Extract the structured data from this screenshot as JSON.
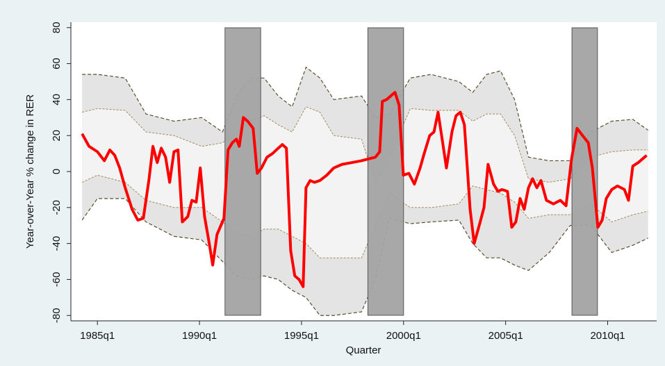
{
  "chart_data": {
    "type": "line",
    "x_label": "Quarter",
    "y_label": "Year-over-Year % change in RER",
    "xlim": [
      1983.7,
      2012.4
    ],
    "ylim": [
      -83,
      83
    ],
    "xticks": [
      {
        "value": 1985,
        "label": "1985q1"
      },
      {
        "value": 1990,
        "label": "1990q1"
      },
      {
        "value": 1995,
        "label": "1995q1"
      },
      {
        "value": 2000,
        "label": "2000q1"
      },
      {
        "value": 2005,
        "label": "2005q1"
      },
      {
        "value": 2010,
        "label": "2010q1"
      }
    ],
    "yticks": [
      -80,
      -60,
      -40,
      -20,
      0,
      20,
      40,
      60,
      80
    ],
    "grid": false,
    "shaded_periods": [
      [
        1991.25,
        1993.0
      ],
      [
        1998.25,
        2000.0
      ],
      [
        2008.25,
        2009.5
      ]
    ],
    "shade_color": "#a3a3a3",
    "band_x": [
      1984.25,
      1985.0,
      1986.36,
      1987.38,
      1988.75,
      1990.11,
      1991.13,
      1991.81,
      1992.49,
      1993.17,
      1993.86,
      1994.54,
      1995.22,
      1995.9,
      1996.58,
      1997.94,
      1998.62,
      1999.31,
      2000.33,
      2001.35,
      2002.71,
      2003.39,
      2004.07,
      2004.75,
      2005.44,
      2006.12,
      2007.14,
      2008.16,
      2009.18,
      2010.2,
      2011.23,
      2011.98
    ],
    "bands": [
      {
        "color": "#e4e4e4",
        "edge_color": "#5c4d2e",
        "upper": [
          54,
          54,
          52,
          32,
          28,
          30,
          22,
          42,
          52,
          52,
          42,
          36,
          58,
          52,
          40,
          42,
          30,
          32,
          52,
          54,
          50,
          44,
          54,
          56,
          40,
          8,
          6,
          6,
          22,
          28,
          29,
          23
        ],
        "lower": [
          -27,
          -15,
          -15,
          -28,
          -36,
          -38,
          -50,
          -58,
          -60,
          -58,
          -60,
          -66,
          -70,
          -80,
          -80,
          -78,
          -60,
          -26,
          -29,
          -28,
          -27,
          -40,
          -48,
          -48,
          -52,
          -55,
          -45,
          -30,
          -30,
          -45,
          -41,
          -37
        ]
      },
      {
        "color": "#f3f3f3",
        "edge_color": "#a08c5a",
        "upper": [
          33,
          35,
          34,
          22,
          20,
          14,
          16,
          22,
          28,
          31,
          26,
          22,
          36,
          33,
          20,
          18,
          -6,
          8,
          35,
          34,
          34,
          28,
          32,
          32,
          20,
          -4,
          -6,
          -4,
          8,
          11,
          12,
          12
        ],
        "lower": [
          -6,
          -2,
          -6,
          -16,
          -20,
          -20,
          -28,
          -34,
          -36,
          -32,
          -32,
          -36,
          -40,
          -48,
          -48,
          -48,
          -30,
          -12,
          -20,
          -20,
          -18,
          -8,
          -10,
          -12,
          -17,
          -26,
          -24,
          -24,
          -18,
          -28,
          -24,
          -22
        ]
      }
    ],
    "series": [
      {
        "color": "#ff0000",
        "x": [
          1984.25,
          1984.59,
          1985.0,
          1985.34,
          1985.61,
          1985.85,
          1986.09,
          1986.36,
          1986.7,
          1986.98,
          1987.25,
          1987.52,
          1987.72,
          1987.93,
          1988.13,
          1988.34,
          1988.54,
          1988.75,
          1988.95,
          1989.16,
          1989.43,
          1989.63,
          1989.84,
          1990.04,
          1990.25,
          1990.45,
          1990.65,
          1990.86,
          1991.2,
          1991.4,
          1991.61,
          1991.81,
          1991.95,
          1992.15,
          1992.36,
          1992.63,
          1992.83,
          1993.04,
          1993.31,
          1993.58,
          1993.86,
          1994.06,
          1994.26,
          1994.47,
          1994.67,
          1994.88,
          1995.08,
          1995.22,
          1995.42,
          1995.63,
          1995.9,
          1996.24,
          1996.58,
          1996.99,
          1997.47,
          1997.94,
          1998.28,
          1998.62,
          1998.83,
          1998.96,
          1999.17,
          1999.37,
          1999.58,
          1999.78,
          1999.99,
          2000.26,
          2000.53,
          2000.81,
          2001.01,
          2001.28,
          2001.49,
          2001.69,
          2001.89,
          2002.1,
          2002.37,
          2002.57,
          2002.78,
          2002.98,
          2003.26,
          2003.46,
          2003.73,
          2003.94,
          2004.14,
          2004.41,
          2004.62,
          2004.82,
          2005.09,
          2005.3,
          2005.5,
          2005.71,
          2005.91,
          2006.12,
          2006.32,
          2006.53,
          2006.73,
          2007.0,
          2007.34,
          2007.68,
          2007.96,
          2008.23,
          2008.5,
          2008.77,
          2009.05,
          2009.25,
          2009.52,
          2009.73,
          2009.93,
          2010.2,
          2010.48,
          2010.82,
          2011.02,
          2011.23,
          2011.5,
          2011.91
        ],
        "values": [
          21,
          14,
          11,
          6,
          12,
          9,
          2,
          -9,
          -21,
          -27,
          -26,
          -5,
          14,
          5,
          13,
          8,
          -6,
          11,
          12,
          -28,
          -25,
          -16,
          -17,
          2,
          -25,
          -38,
          -52,
          -35,
          -26,
          12,
          16,
          18,
          14,
          30,
          28,
          24,
          -1,
          2,
          8,
          10,
          13,
          15,
          13,
          -44,
          -58,
          -60,
          -64,
          -9,
          -5,
          -6,
          -5,
          -2,
          2,
          4,
          5,
          6,
          7,
          8,
          11,
          39,
          40,
          42,
          44,
          37,
          -2,
          -1,
          -7,
          2,
          10,
          20,
          22,
          33,
          18,
          2,
          22,
          31,
          33,
          26,
          -21,
          -40,
          -29,
          -20,
          4,
          -7,
          -11,
          -10,
          -11,
          -31,
          -28,
          -15,
          -21,
          -9,
          -4,
          -9,
          -5,
          -16,
          -18,
          -16,
          -19,
          7,
          24,
          20,
          16,
          2,
          -31,
          -27,
          -15,
          -10,
          -8,
          -10,
          -16,
          3,
          5,
          9
        ]
      }
    ]
  }
}
